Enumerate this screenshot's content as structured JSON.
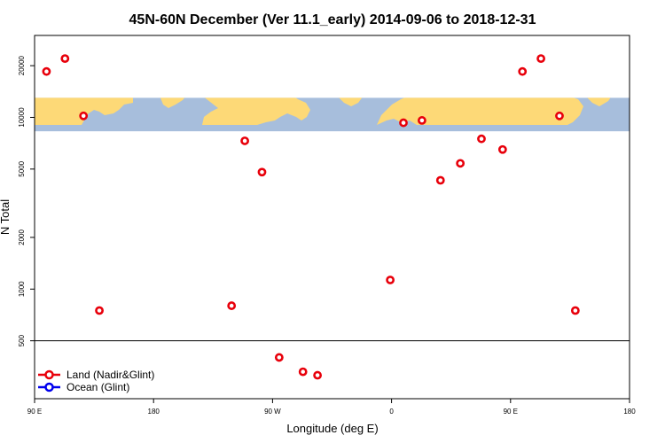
{
  "chart_data": {
    "type": "scatter",
    "title": "45N-60N December (Ver 11.1_early)   2014-09-06 to 2018-12-31",
    "xlabel": "Longitude (deg E)",
    "ylabel": "N Total",
    "y_scale": "log",
    "xlim": [
      90,
      540
    ],
    "ylim": [
      230,
      30000
    ],
    "x_ticks": [
      {
        "value": 90,
        "label": "90 E"
      },
      {
        "value": 180,
        "label": "180"
      },
      {
        "value": 270,
        "label": "90 W"
      },
      {
        "value": 360,
        "label": "0"
      },
      {
        "value": 450,
        "label": "90 E"
      },
      {
        "value": 540,
        "label": "180"
      }
    ],
    "y_ticks": [
      {
        "value": 500,
        "label": "500"
      },
      {
        "value": 1000,
        "label": "1000"
      },
      {
        "value": 2000,
        "label": "2000"
      },
      {
        "value": 5000,
        "label": "5000"
      },
      {
        "value": 10000,
        "label": "10000"
      },
      {
        "value": 20000,
        "label": "20000"
      }
    ],
    "reference_line_y": 500,
    "map_band_y": [
      8300,
      13000
    ],
    "colors": {
      "land": "#e8000b",
      "ocean": "#0000ee",
      "map_ocean": "#a7bedc",
      "map_land": "#fdd977"
    },
    "legend_position": "bottom-left",
    "series": [
      {
        "name": "Land (Nadir&Glint)",
        "color": "#e8000b",
        "points": [
          {
            "x": 99,
            "y": 18500
          },
          {
            "x": 113,
            "y": 22000
          },
          {
            "x": 127,
            "y": 10200
          },
          {
            "x": 139,
            "y": 750
          },
          {
            "x": 239,
            "y": 800
          },
          {
            "x": 249,
            "y": 7300
          },
          {
            "x": 262,
            "y": 4800
          },
          {
            "x": 275,
            "y": 400
          },
          {
            "x": 293,
            "y": 330
          },
          {
            "x": 304,
            "y": 315
          },
          {
            "x": 359,
            "y": 1130
          },
          {
            "x": 369,
            "y": 9300
          },
          {
            "x": 383,
            "y": 9600
          },
          {
            "x": 397,
            "y": 4300
          },
          {
            "x": 412,
            "y": 5400
          },
          {
            "x": 428,
            "y": 7500
          },
          {
            "x": 444,
            "y": 6500
          },
          {
            "x": 459,
            "y": 18500
          },
          {
            "x": 473,
            "y": 22000
          },
          {
            "x": 487,
            "y": 10200
          },
          {
            "x": 499,
            "y": 750
          }
        ]
      },
      {
        "name": "Ocean (Glint)",
        "color": "#0000ee",
        "points": []
      }
    ]
  }
}
